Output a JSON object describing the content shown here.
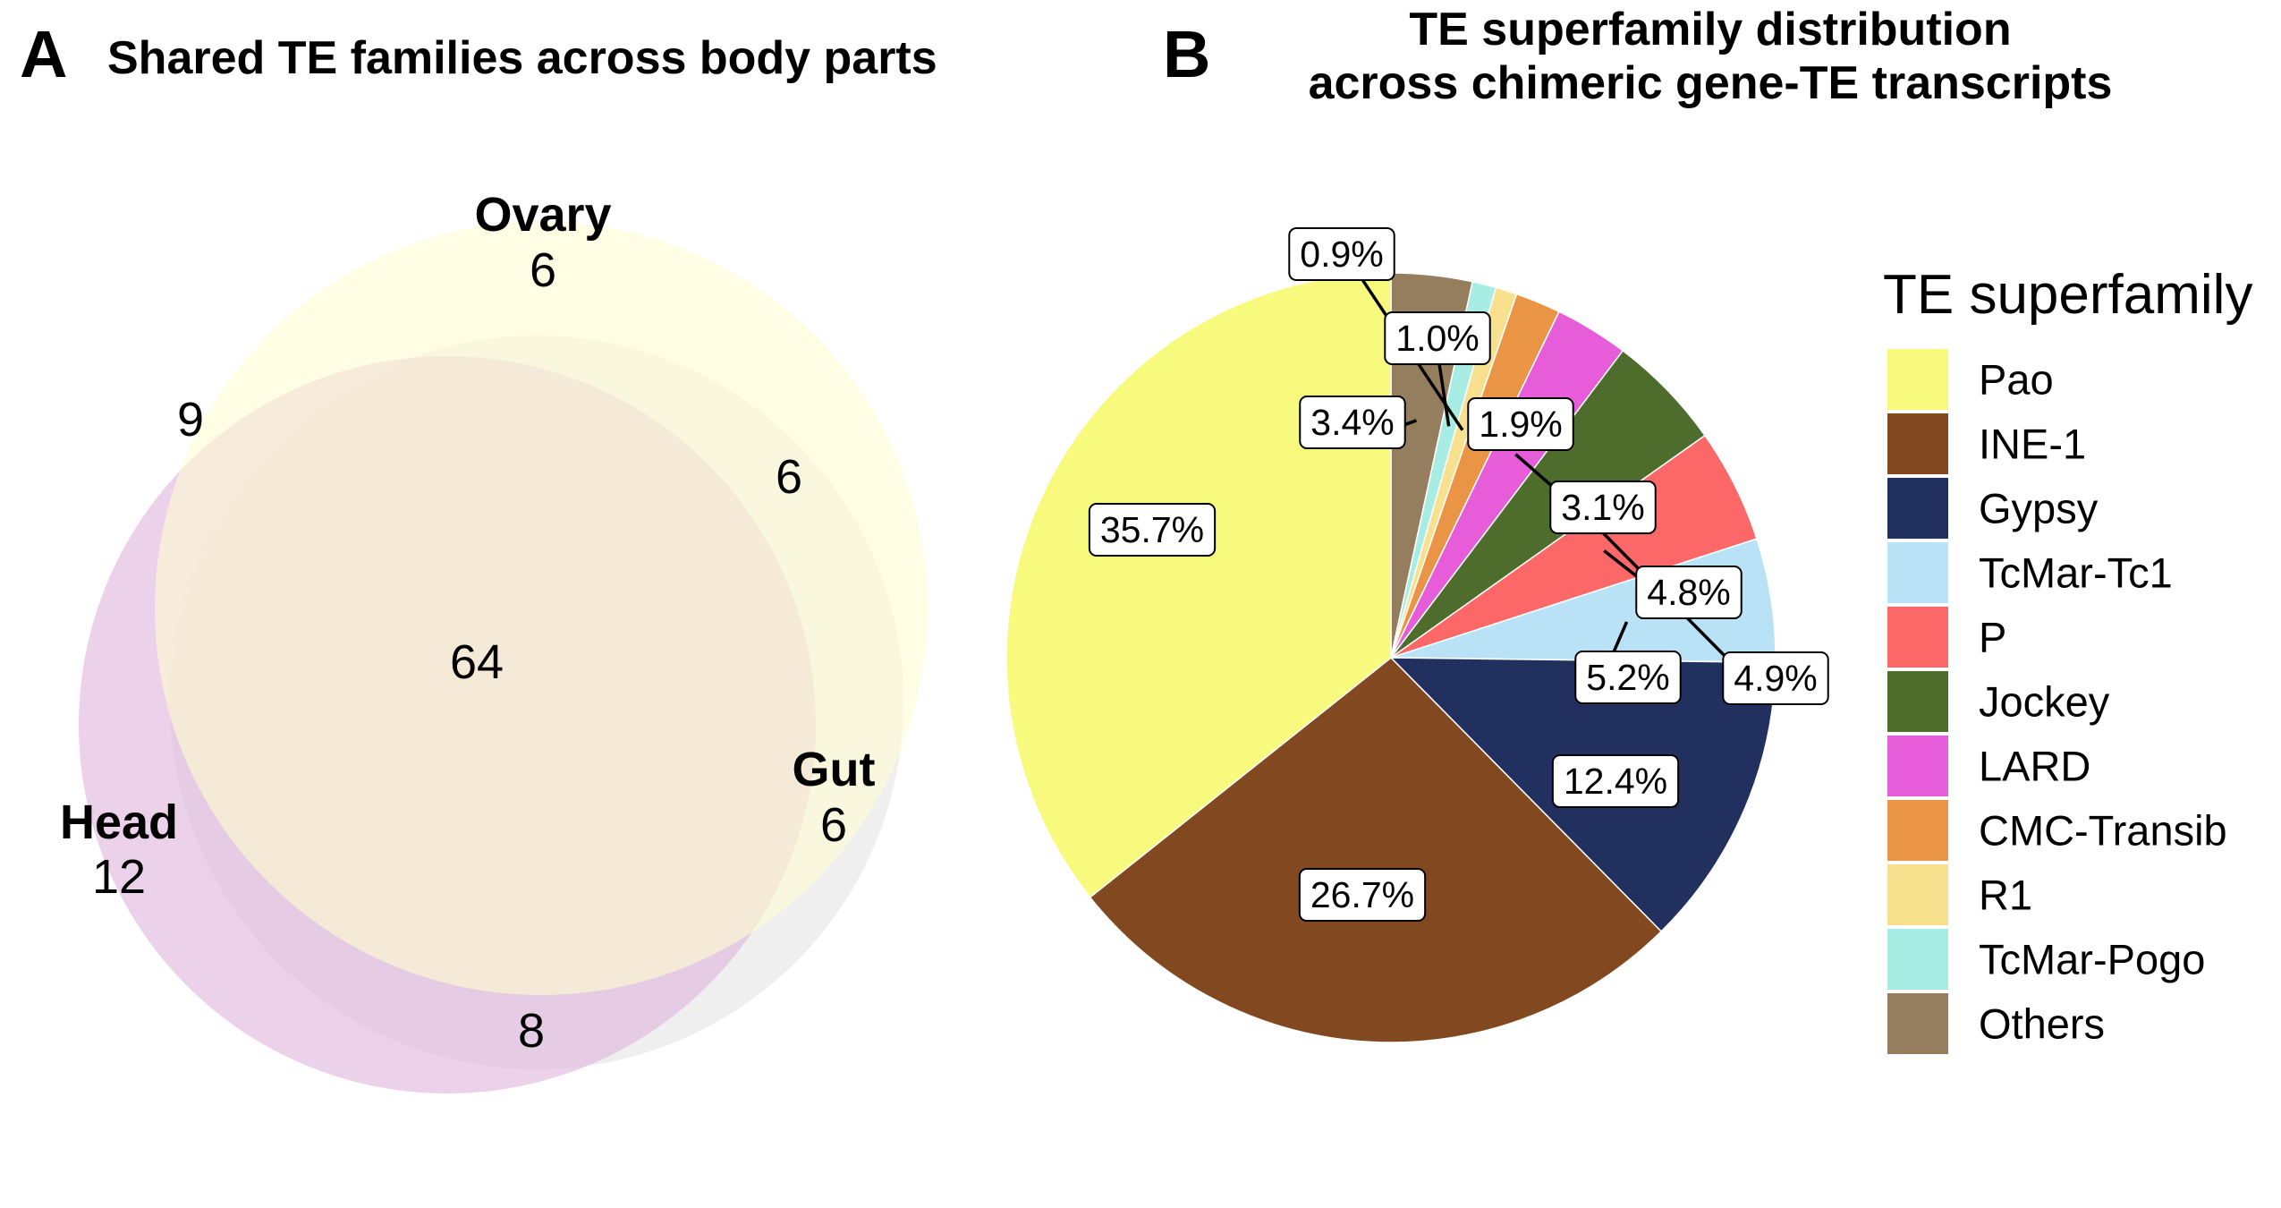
{
  "panel_a": {
    "letter": "A",
    "title": "Shared TE families across body parts",
    "sets": [
      {
        "name": "Ovary",
        "count": "6",
        "color": "#FFFBD0"
      },
      {
        "name": "Head",
        "count": "12",
        "color": "#DDB4DC"
      },
      {
        "name": "Gut",
        "count": "6",
        "color": "#E4E4E4"
      }
    ],
    "overlaps": {
      "ovary_head": "9",
      "ovary_gut": "6",
      "head_gut": "8",
      "all_three": "64"
    }
  },
  "panel_b": {
    "letter": "B",
    "title_line1": "TE superfamily distribution",
    "title_line2": "across chimeric gene-TE transcripts",
    "legend_title": "TE superfamily"
  },
  "chart_data": {
    "type": "pie",
    "title": "TE superfamily distribution across chimeric gene-TE transcripts",
    "legend_title": "TE superfamily",
    "slices": [
      {
        "name": "Others",
        "value": 3.4,
        "label": "3.4%",
        "color": "#957E5D"
      },
      {
        "name": "TcMar-Pogo",
        "value": 1.0,
        "label": "1.0%",
        "color": "#A8EDE3"
      },
      {
        "name": "R1",
        "value": 0.9,
        "label": "0.9%",
        "color": "#F8E18E"
      },
      {
        "name": "CMC-Transib",
        "value": 1.9,
        "label": "1.9%",
        "color": "#EA9445"
      },
      {
        "name": "LARD",
        "value": 3.1,
        "label": "3.1%",
        "color": "#E65CD9"
      },
      {
        "name": "Jockey",
        "value": 4.9,
        "label": "4.9%",
        "color": "#4E6D2C"
      },
      {
        "name": "P",
        "value": 4.8,
        "label": "4.8%",
        "color": "#FC6868"
      },
      {
        "name": "TcMar-Tc1",
        "value": 5.2,
        "label": "5.2%",
        "color": "#B9E2F6"
      },
      {
        "name": "Gypsy",
        "value": 12.4,
        "label": "12.4%",
        "color": "#22305F"
      },
      {
        "name": "INE-1",
        "value": 26.7,
        "label": "26.7%",
        "color": "#82481F"
      },
      {
        "name": "Pao",
        "value": 35.7,
        "label": "35.7%",
        "color": "#F7FA7C"
      }
    ],
    "legend_order": [
      "Pao",
      "INE-1",
      "Gypsy",
      "TcMar-Tc1",
      "P",
      "Jockey",
      "LARD",
      "CMC-Transib",
      "R1",
      "TcMar-Pogo",
      "Others"
    ]
  }
}
